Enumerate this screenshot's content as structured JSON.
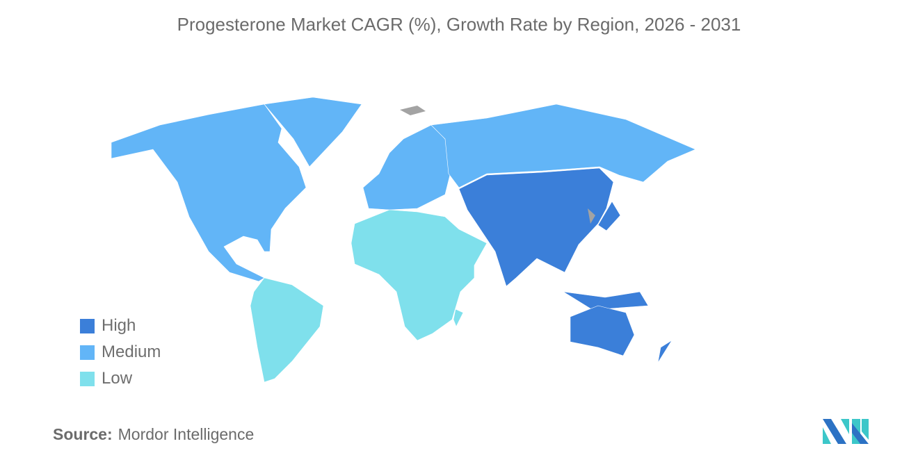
{
  "title": "Progesterone Market CAGR (%), Growth Rate by Region, 2026 - 2031",
  "legend": [
    {
      "label": "High",
      "color": "#3b7fd9"
    },
    {
      "label": "Medium",
      "color": "#62b5f7"
    },
    {
      "label": "Low",
      "color": "#7fe0ec"
    }
  ],
  "no_data_color": "#a3a3a3",
  "regions": {
    "north-america": "Medium",
    "greenland": "Medium",
    "europe": "Medium",
    "russia": "Medium",
    "south-america": "Low",
    "middle-east-africa": "Low",
    "asia": "High",
    "japan": "High",
    "southeast-asia-islands": "High",
    "australia": "High",
    "new-zealand": "High"
  },
  "source": {
    "label": "Source:",
    "value": "Mordor Intelligence"
  },
  "logo": {
    "text": "Mordor Intelligence",
    "colors": [
      "#2c72c4",
      "#3cc7c9"
    ]
  }
}
